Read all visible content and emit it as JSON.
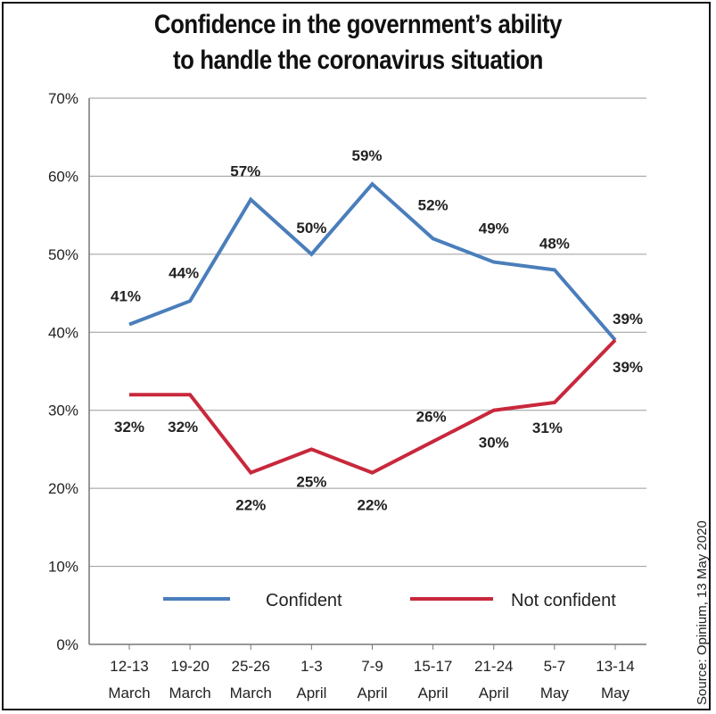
{
  "chart_data": {
    "type": "line",
    "title_lines": [
      "Confidence in the government’s ability",
      "to handle the coronavirus situation"
    ],
    "categories": [
      [
        "12-13",
        "March"
      ],
      [
        "19-20",
        "March"
      ],
      [
        "25-26",
        "March"
      ],
      [
        "1-3",
        "April"
      ],
      [
        "7-9",
        "April"
      ],
      [
        "15-17",
        "April"
      ],
      [
        "21-24",
        "April"
      ],
      [
        "5-7",
        "May"
      ],
      [
        "13-14",
        "May"
      ]
    ],
    "series": [
      {
        "name": "Confident",
        "color": "#4a7ebb",
        "values": [
          41,
          44,
          57,
          50,
          59,
          52,
          49,
          48,
          39
        ],
        "labels": [
          "41%",
          "44%",
          "57%",
          "50%",
          "59%",
          "52%",
          "49%",
          "48%",
          "39%"
        ]
      },
      {
        "name": "Not confident",
        "color": "#c8283c",
        "values": [
          32,
          32,
          22,
          25,
          22,
          26,
          30,
          31,
          39
        ],
        "labels": [
          "32%",
          "32%",
          "22%",
          "25%",
          "22%",
          "26%",
          "30%",
          "31%",
          "39%"
        ]
      }
    ],
    "y_ticks": [
      "0%",
      "10%",
      "20%",
      "30%",
      "40%",
      "50%",
      "60%",
      "70%"
    ],
    "ylim": [
      0,
      70
    ],
    "grid": true,
    "legend_position": "bottom",
    "source": "Source: Opinium, 13 May 2020"
  }
}
